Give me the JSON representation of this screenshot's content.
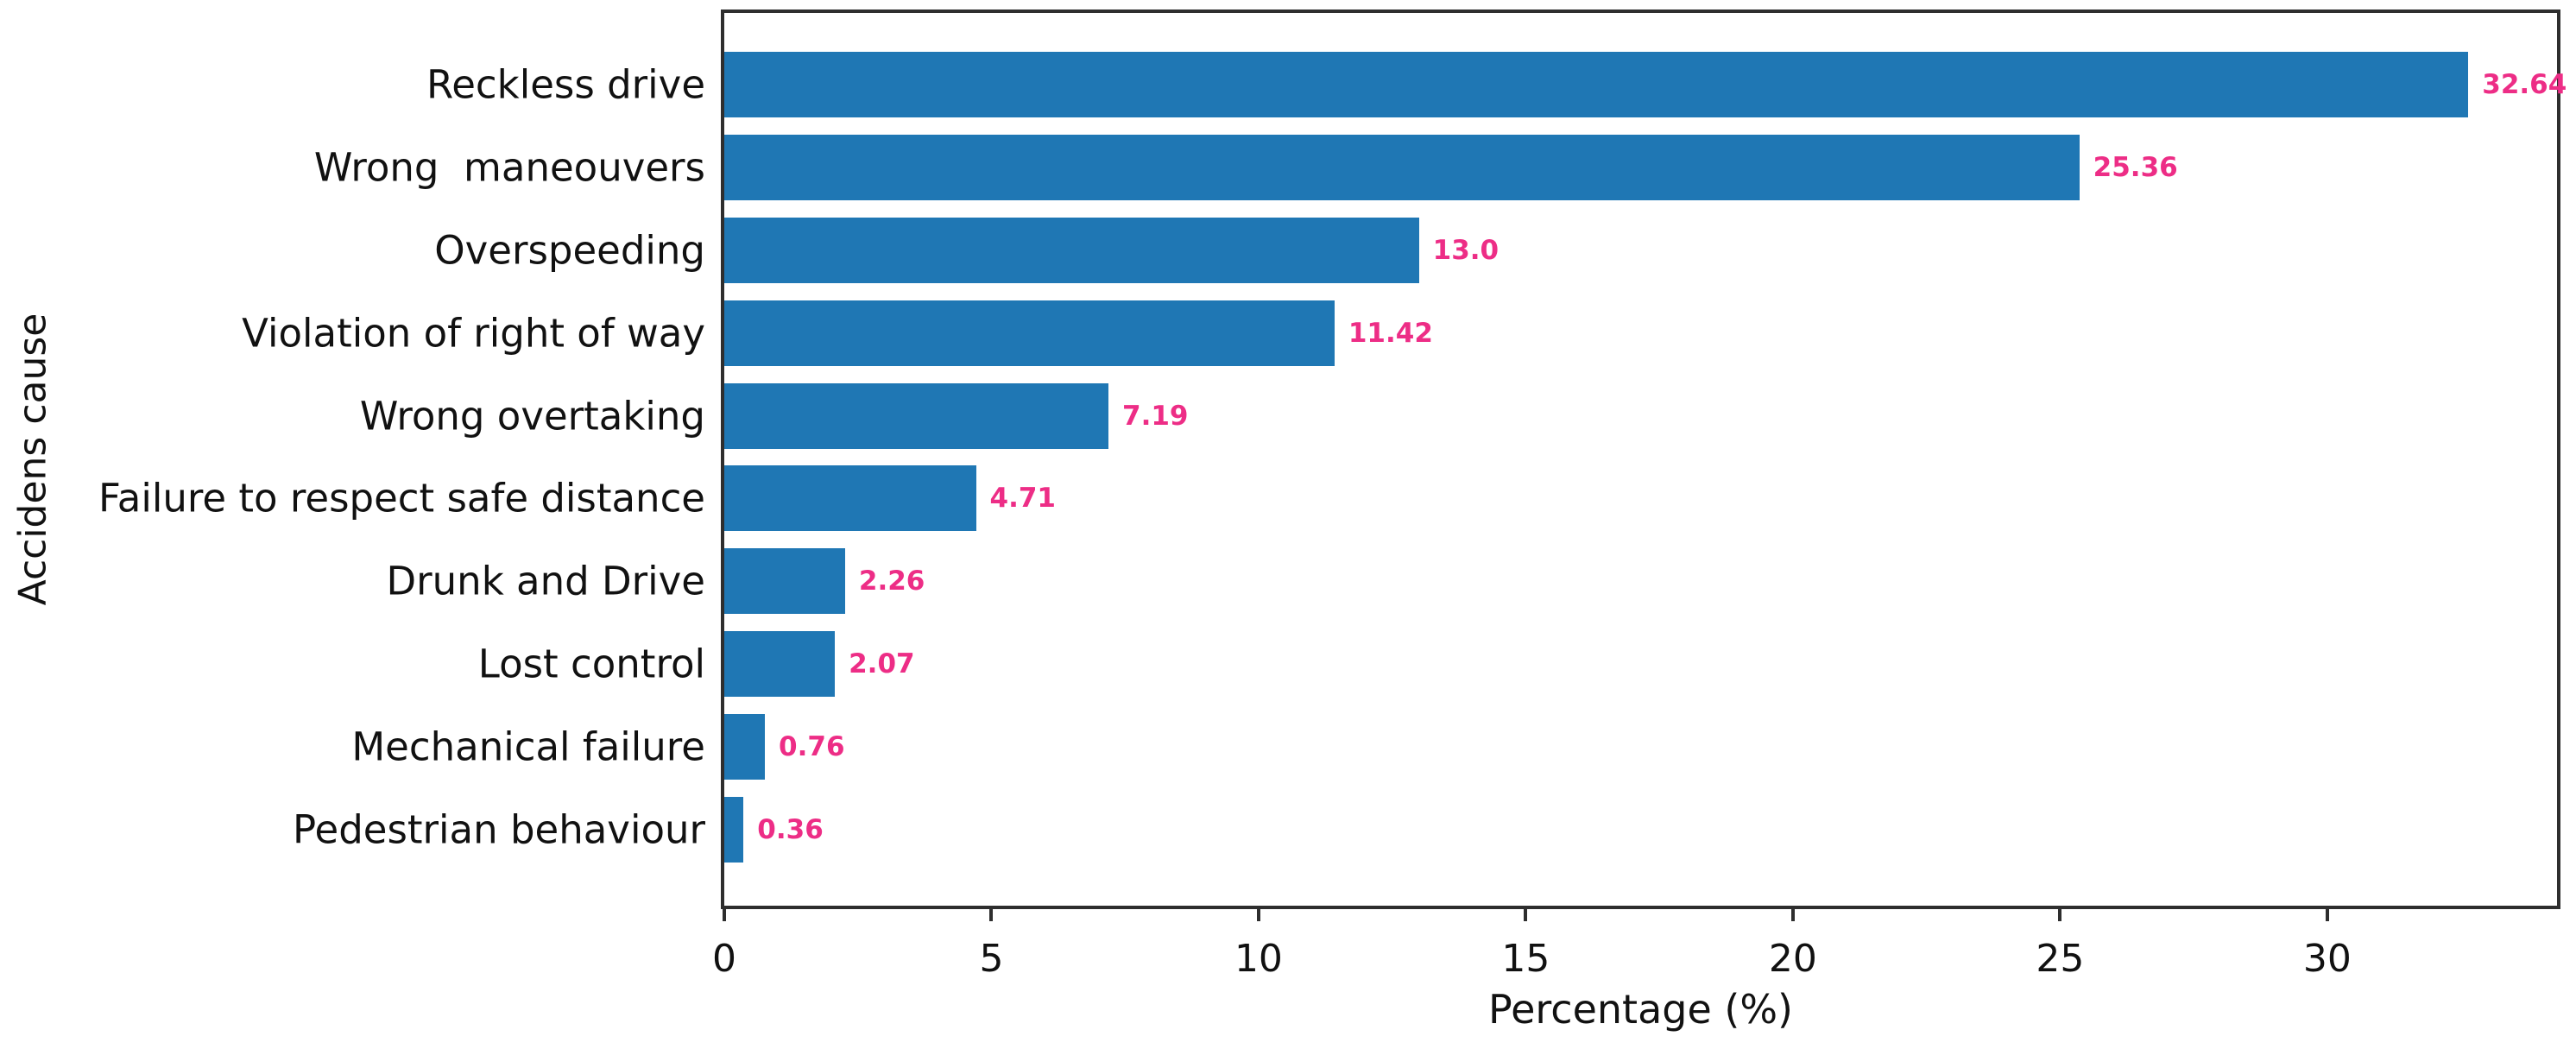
{
  "chart_data": {
    "type": "bar",
    "orientation": "horizontal",
    "title": "",
    "xlabel": "Percentage (%)",
    "ylabel": "Accidens cause",
    "categories": [
      "Reckless drive",
      "Wrong  maneouvers",
      "Overspeeding",
      "Violation of right of way",
      "Wrong overtaking",
      "Failure to respect safe distance",
      "Drunk and Drive",
      "Lost control",
      "Mechanical failure",
      "Pedestrian behaviour"
    ],
    "values": [
      32.64,
      25.36,
      13.0,
      11.42,
      7.19,
      4.71,
      2.26,
      2.07,
      0.76,
      0.36
    ],
    "value_labels": [
      "32.64",
      "25.36",
      "13.0",
      "11.42",
      "7.19",
      "4.71",
      "2.26",
      "2.07",
      "0.76",
      "0.36"
    ],
    "x_ticks": [
      0,
      5,
      10,
      15,
      20,
      25,
      30
    ],
    "xlim": [
      0,
      34.3
    ],
    "grid": false,
    "legend_position": "none",
    "bar_color": "#1f77b4",
    "value_label_color": "#ed2d86",
    "spine_color": "#2e2e2e",
    "text_color": "#111111"
  }
}
